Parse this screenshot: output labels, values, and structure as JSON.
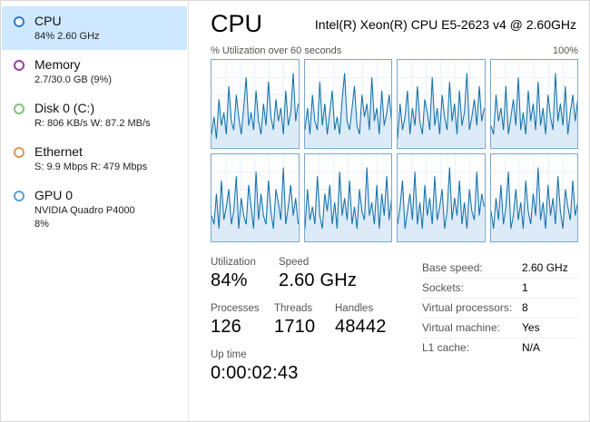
{
  "sidebar": {
    "items": [
      {
        "title": "CPU",
        "subtitle": "84%  2.60 GHz",
        "color": "#2b7cd3",
        "selected": true
      },
      {
        "title": "Memory",
        "subtitle": "2.7/30.0 GB (9%)",
        "color": "#9b3f9b",
        "selected": false
      },
      {
        "title": "Disk 0 (C:)",
        "subtitle": "R: 806 KB/s W: 87.2 MB/s",
        "color": "#7dc47d",
        "selected": false
      },
      {
        "title": "Ethernet",
        "subtitle": "S: 9.9 Mbps R: 479 Mbps",
        "color": "#d9995c",
        "selected": false
      },
      {
        "title": "GPU 0",
        "subtitle": "NVIDIA Quadro P4000",
        "subtitle2": "8%",
        "color": "#58a0d6",
        "selected": false
      }
    ]
  },
  "main": {
    "title": "CPU",
    "subtitle": "Intel(R) Xeon(R) CPU E5-2623 v4 @ 2.60GHz",
    "chart_label": "% Utilization over 60 seconds",
    "chart_max": "100%",
    "stats": {
      "utilization": {
        "label": "Utilization",
        "value": "84%"
      },
      "speed": {
        "label": "Speed",
        "value": "2.60 GHz"
      },
      "processes": {
        "label": "Processes",
        "value": "126"
      },
      "threads": {
        "label": "Threads",
        "value": "1710"
      },
      "handles": {
        "label": "Handles",
        "value": "48442"
      },
      "uptime": {
        "label": "Up time",
        "value": "0:00:02:43"
      }
    },
    "details": [
      {
        "label": "Base speed:",
        "value": "2.60 GHz"
      },
      {
        "label": "Sockets:",
        "value": "1"
      },
      {
        "label": "Virtual processors:",
        "value": "8"
      },
      {
        "label": "Virtual machine:",
        "value": "Yes"
      },
      {
        "label": "L1 cache:",
        "value": "N/A"
      }
    ]
  },
  "chart_data": {
    "type": "area",
    "title": "% Utilization over 60 seconds (per logical processor)",
    "ylim": [
      0,
      100
    ],
    "line_color": "#1471ab",
    "fill_color": "#dcebf7",
    "grid_color": "#e2edf6",
    "border_color": "#7aa6cc",
    "cores": [
      [
        15,
        35,
        10,
        55,
        25,
        40,
        15,
        70,
        30,
        20,
        60,
        35,
        15,
        45,
        80,
        25,
        40,
        20,
        65,
        30,
        15,
        50,
        25,
        75,
        35,
        20,
        55,
        30,
        45,
        15,
        65,
        25,
        40,
        85,
        30,
        50
      ],
      [
        20,
        45,
        15,
        60,
        30,
        20,
        75,
        25,
        50,
        15,
        40,
        65,
        20,
        35,
        15,
        55,
        85,
        30,
        20,
        45,
        70,
        25,
        15,
        60,
        35,
        50,
        20,
        80,
        30,
        45,
        15,
        65,
        25,
        40,
        60,
        30
      ],
      [
        10,
        50,
        20,
        35,
        65,
        15,
        45,
        25,
        70,
        30,
        15,
        55,
        40,
        20,
        80,
        25,
        45,
        15,
        60,
        35,
        20,
        75,
        30,
        50,
        15,
        65,
        25,
        40,
        85,
        20,
        35,
        55,
        25,
        70,
        30,
        45
      ],
      [
        25,
        15,
        60,
        30,
        45,
        20,
        70,
        15,
        35,
        55,
        25,
        80,
        20,
        40,
        15,
        65,
        30,
        50,
        20,
        75,
        25,
        45,
        15,
        60,
        35,
        20,
        85,
        30,
        50,
        25,
        70,
        15,
        40,
        60,
        30,
        55
      ],
      [
        30,
        20,
        55,
        15,
        70,
        25,
        40,
        60,
        20,
        35,
        75,
        15,
        50,
        30,
        20,
        65,
        40,
        15,
        80,
        25,
        55,
        30,
        20,
        70,
        35,
        15,
        60,
        45,
        25,
        85,
        20,
        40,
        65,
        30,
        50,
        20
      ],
      [
        15,
        60,
        25,
        40,
        20,
        75,
        30,
        15,
        55,
        35,
        65,
        20,
        45,
        15,
        80,
        30,
        50,
        25,
        70,
        20,
        40,
        15,
        60,
        35,
        25,
        85,
        30,
        45,
        20,
        65,
        15,
        55,
        30,
        75,
        25,
        50
      ],
      [
        20,
        40,
        70,
        15,
        35,
        55,
        25,
        80,
        20,
        45,
        15,
        65,
        30,
        50,
        20,
        75,
        25,
        40,
        60,
        15,
        35,
        85,
        25,
        50,
        30,
        70,
        20,
        45,
        15,
        60,
        35,
        25,
        80,
        30,
        55,
        40
      ],
      [
        35,
        15,
        50,
        25,
        65,
        20,
        40,
        80,
        15,
        30,
        60,
        25,
        45,
        15,
        70,
        35,
        20,
        55,
        30,
        85,
        25,
        45,
        15,
        65,
        30,
        50,
        20,
        75,
        35,
        15,
        60,
        40,
        25,
        70,
        30,
        45
      ]
    ]
  }
}
